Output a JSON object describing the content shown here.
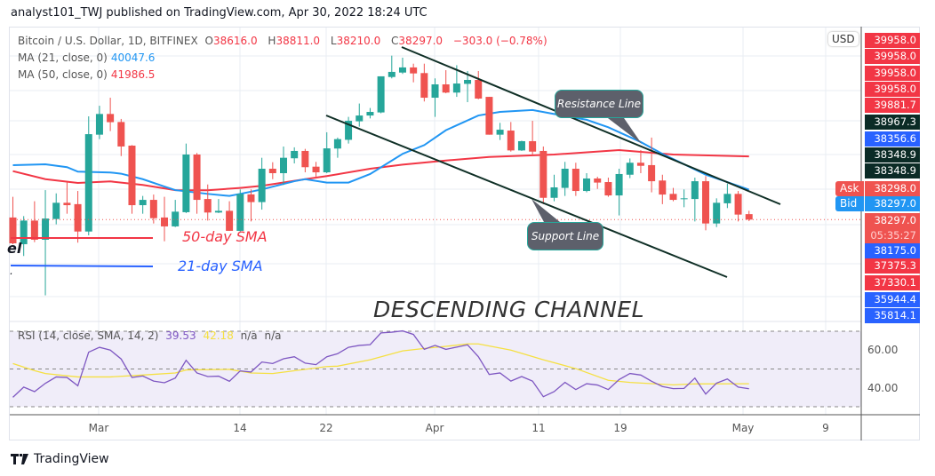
{
  "header": {
    "published": "analyst101_TWJ published on TradingView.com, Apr 30, 2022 18:24 UTC"
  },
  "legend": {
    "symbol": "Bitcoin / U.S. Dollar, 1D, BITFINEX",
    "o_label": "O",
    "o": "38616.0",
    "h_label": "H",
    "h": "38811.0",
    "l_label": "L",
    "l": "38210.0",
    "c_label": "C",
    "c": "38297.0",
    "change": "−303.0 (−0.78%)",
    "ma21_label": "MA (21, close, 0)",
    "ma21_value": "40047.6",
    "ma50_label": "MA (50, close, 0)",
    "ma50_value": "41986.5"
  },
  "rsi_legend": {
    "label": "RSI (14, close, SMA, 14, 2)",
    "rsi": "39.53",
    "sma": "42.18",
    "na1": "n/a",
    "na2": "n/a"
  },
  "annotations": {
    "sma50": "50-day SMA",
    "sma21": "21-day SMA",
    "channel": "DESCENDING CHANNEL",
    "resistance": "Resistance Line",
    "support": "Support Line",
    "cut_text": "el",
    "cut_dot": "."
  },
  "time_axis": [
    "Mar",
    "14",
    "22",
    "Apr",
    "11",
    "19",
    "May",
    "9"
  ],
  "rsi_axis": [
    "60.00",
    "40.00"
  ],
  "price_axis": {
    "currency": "USD",
    "labels": [
      {
        "text": "39958.0",
        "color": "#f23645"
      },
      {
        "text": "39958.0",
        "color": "#f23645"
      },
      {
        "text": "39958.0",
        "color": "#f23645"
      },
      {
        "text": "39958.0",
        "color": "#f23645"
      },
      {
        "text": "39881.7",
        "color": "#f23645"
      },
      {
        "text": "38967.3",
        "color": "#0b2b26"
      },
      {
        "text": "38356.6",
        "color": "#2962ff"
      },
      {
        "text": "38348.9",
        "color": "#0b2b26"
      },
      {
        "text": "38348.9",
        "color": "#0b2b26"
      },
      {
        "text": "38298.0",
        "color": "#ef5350",
        "tag": "Ask"
      },
      {
        "text": "38297.0",
        "color": "#2196f3",
        "tag": "Bid"
      },
      {
        "text": "38297.0",
        "color": "#ef5350",
        "sub": "05:35:27"
      },
      {
        "text": "38175.0",
        "color": "#2962ff"
      },
      {
        "text": "37375.3",
        "color": "#f23645"
      },
      {
        "text": "37330.1",
        "color": "#f23645"
      },
      {
        "text": "35944.4",
        "color": "#2962ff"
      },
      {
        "text": "35814.1",
        "color": "#2962ff"
      }
    ]
  },
  "colors": {
    "up": "#26a69a",
    "down": "#ef5350",
    "ma21": "#2196f3",
    "ma50": "#f23645",
    "rsi": "#7e57c2",
    "rsi_sma": "#f5e042",
    "channel": "#0f2f26"
  },
  "footer": {
    "brand": "TradingView"
  },
  "chart_data": {
    "type": "candlestick",
    "symbol": "BTC/USD 1D",
    "candles_ohlc": [
      [
        38420,
        39630,
        36860,
        36910
      ],
      [
        36860,
        38500,
        36170,
        38240
      ],
      [
        38240,
        39370,
        36980,
        37120
      ],
      [
        37120,
        40020,
        33870,
        38360
      ],
      [
        38330,
        39830,
        38020,
        39280
      ],
      [
        39280,
        40490,
        38640,
        39140
      ],
      [
        39200,
        39970,
        36950,
        37600
      ],
      [
        37600,
        44330,
        37380,
        43290
      ],
      [
        43260,
        44950,
        43000,
        44470
      ],
      [
        44470,
        45420,
        43470,
        43990
      ],
      [
        44000,
        44180,
        42010,
        42570
      ],
      [
        42620,
        42650,
        38640,
        39140
      ],
      [
        39140,
        39680,
        38640,
        39450
      ],
      [
        39450,
        39760,
        38070,
        38380
      ],
      [
        38420,
        39630,
        37030,
        37900
      ],
      [
        37900,
        39450,
        37860,
        38760
      ],
      [
        38730,
        42740,
        38680,
        42100
      ],
      [
        42100,
        42190,
        38640,
        39450
      ],
      [
        39500,
        40350,
        38240,
        38710
      ],
      [
        38710,
        39500,
        38680,
        38810
      ],
      [
        38810,
        39370,
        37640,
        37640
      ],
      [
        37640,
        40060,
        37600,
        39800
      ],
      [
        39770,
        40060,
        38190,
        39320
      ],
      [
        39320,
        41910,
        38880,
        41270
      ],
      [
        41270,
        41650,
        40660,
        41010
      ],
      [
        41010,
        42570,
        40320,
        41910
      ],
      [
        41880,
        42520,
        41580,
        42310
      ],
      [
        42310,
        42430,
        41060,
        41360
      ],
      [
        41390,
        41670,
        40750,
        41060
      ],
      [
        41060,
        43400,
        41010,
        42460
      ],
      [
        42450,
        43090,
        41910,
        43000
      ],
      [
        42960,
        44300,
        42740,
        44070
      ],
      [
        44040,
        45080,
        43730,
        44380
      ],
      [
        44380,
        44820,
        44210,
        44590
      ],
      [
        44560,
        46670,
        44510,
        46670
      ],
      [
        46630,
        47880,
        46550,
        46930
      ],
      [
        46890,
        47760,
        46810,
        47190
      ],
      [
        47190,
        47410,
        46320,
        46840
      ],
      [
        46860,
        47410,
        45200,
        45420
      ],
      [
        45420,
        46550,
        44300,
        46200
      ],
      [
        46200,
        47030,
        45680,
        45720
      ],
      [
        45720,
        47320,
        45470,
        46250
      ],
      [
        46230,
        46980,
        45160,
        46460
      ],
      [
        46460,
        46980,
        45330,
        45370
      ],
      [
        45470,
        45470,
        43260,
        43260
      ],
      [
        43260,
        43950,
        42950,
        43550
      ],
      [
        43500,
        44000,
        42270,
        42340
      ],
      [
        42340,
        42910,
        42310,
        42880
      ],
      [
        42880,
        44070,
        42050,
        42270
      ],
      [
        42310,
        42570,
        39200,
        39570
      ],
      [
        39570,
        40920,
        39370,
        40180
      ],
      [
        40150,
        41670,
        39680,
        41270
      ],
      [
        41270,
        41620,
        39680,
        39970
      ],
      [
        39970,
        41010,
        39890,
        40700
      ],
      [
        40700,
        40800,
        40090,
        40460
      ],
      [
        40490,
        40750,
        39630,
        39710
      ],
      [
        39710,
        41270,
        38540,
        40960
      ],
      [
        40920,
        41870,
        40720,
        41620
      ],
      [
        41620,
        42360,
        41010,
        41440
      ],
      [
        41480,
        43090,
        39890,
        40540
      ],
      [
        40580,
        40920,
        39200,
        39760
      ],
      [
        39800,
        40150,
        39370,
        39450
      ],
      [
        39490,
        40060,
        39020,
        39540
      ],
      [
        39500,
        40750,
        38190,
        40540
      ],
      [
        40540,
        40840,
        37670,
        38070
      ],
      [
        38070,
        39540,
        37860,
        39280
      ],
      [
        39250,
        40400,
        38970,
        39800
      ],
      [
        39800,
        39970,
        38190,
        38590
      ],
      [
        38616,
        38811,
        38210,
        38297
      ]
    ],
    "ma21": [
      [
        0,
        41480
      ],
      [
        3,
        41530
      ],
      [
        5,
        41360
      ],
      [
        6,
        41100
      ],
      [
        9,
        41050
      ],
      [
        10,
        40980
      ],
      [
        12,
        40660
      ],
      [
        14,
        40230
      ],
      [
        15,
        40020
      ],
      [
        18,
        39800
      ],
      [
        20,
        39680
      ],
      [
        21,
        39800
      ],
      [
        23,
        40060
      ],
      [
        26,
        40540
      ],
      [
        27,
        40660
      ],
      [
        29,
        40460
      ],
      [
        31,
        40460
      ],
      [
        33,
        40960
      ],
      [
        36,
        42140
      ],
      [
        38,
        42650
      ],
      [
        40,
        43520
      ],
      [
        43,
        44380
      ],
      [
        45,
        44590
      ],
      [
        48,
        44700
      ],
      [
        50,
        44470
      ],
      [
        53,
        44130
      ],
      [
        55,
        43690
      ],
      [
        58,
        42830
      ],
      [
        60,
        42140
      ],
      [
        64,
        40920
      ],
      [
        66,
        40490
      ],
      [
        68,
        40048
      ]
    ],
    "ma50": [
      [
        0,
        41130
      ],
      [
        3,
        40660
      ],
      [
        6,
        40440
      ],
      [
        9,
        40530
      ],
      [
        12,
        40320
      ],
      [
        15,
        40020
      ],
      [
        18,
        40010
      ],
      [
        21,
        40150
      ],
      [
        23,
        40270
      ],
      [
        27,
        40660
      ],
      [
        29,
        40840
      ],
      [
        33,
        41270
      ],
      [
        36,
        41510
      ],
      [
        40,
        41750
      ],
      [
        44,
        41960
      ],
      [
        50,
        42100
      ],
      [
        56,
        42360
      ],
      [
        61,
        42100
      ],
      [
        68,
        41987
      ]
    ],
    "rsi": [
      35.0,
      40.4,
      38.0,
      42.4,
      45.8,
      45.5,
      41.1,
      58.9,
      61.5,
      60.0,
      55.3,
      45.5,
      46.3,
      43.6,
      42.7,
      45.2,
      54.6,
      47.9,
      46.0,
      46.2,
      43.5,
      49.0,
      48.4,
      53.7,
      52.9,
      55.4,
      56.5,
      53.1,
      52.3,
      56.5,
      58.1,
      61.5,
      62.5,
      62.9,
      69.1,
      69.5,
      70.2,
      68.3,
      60.4,
      62.5,
      60.4,
      61.6,
      62.8,
      56.5,
      47.1,
      47.9,
      43.6,
      46.0,
      43.6,
      35.3,
      38.0,
      42.9,
      39.1,
      42.2,
      41.5,
      39.1,
      44.4,
      47.6,
      46.8,
      43.5,
      40.7,
      39.6,
      39.7,
      45.2,
      36.7,
      42.5,
      44.7,
      40.4,
      39.53
    ],
    "rsi_sma": [
      [
        0,
        52.9
      ],
      [
        2,
        49.1
      ],
      [
        3,
        47.6
      ],
      [
        6,
        45.8
      ],
      [
        9,
        45.8
      ],
      [
        12,
        46.8
      ],
      [
        15,
        47.9
      ],
      [
        16,
        49.5
      ],
      [
        20,
        49.8
      ],
      [
        22,
        47.9
      ],
      [
        24,
        47.6
      ],
      [
        29,
        51.3
      ],
      [
        30,
        51.5
      ],
      [
        33,
        54.9
      ],
      [
        36,
        59.6
      ],
      [
        38,
        60.9
      ],
      [
        40,
        62.0
      ],
      [
        42,
        63.3
      ],
      [
        43,
        63.3
      ],
      [
        46,
        60.0
      ],
      [
        49,
        54.9
      ],
      [
        52,
        50.2
      ],
      [
        55,
        44.0
      ],
      [
        57,
        42.9
      ],
      [
        61,
        41.6
      ],
      [
        63,
        42.1
      ],
      [
        68,
        42.18
      ]
    ],
    "rsi_levels": {
      "upper": 70,
      "middle": 50,
      "lower": 30
    }
  }
}
